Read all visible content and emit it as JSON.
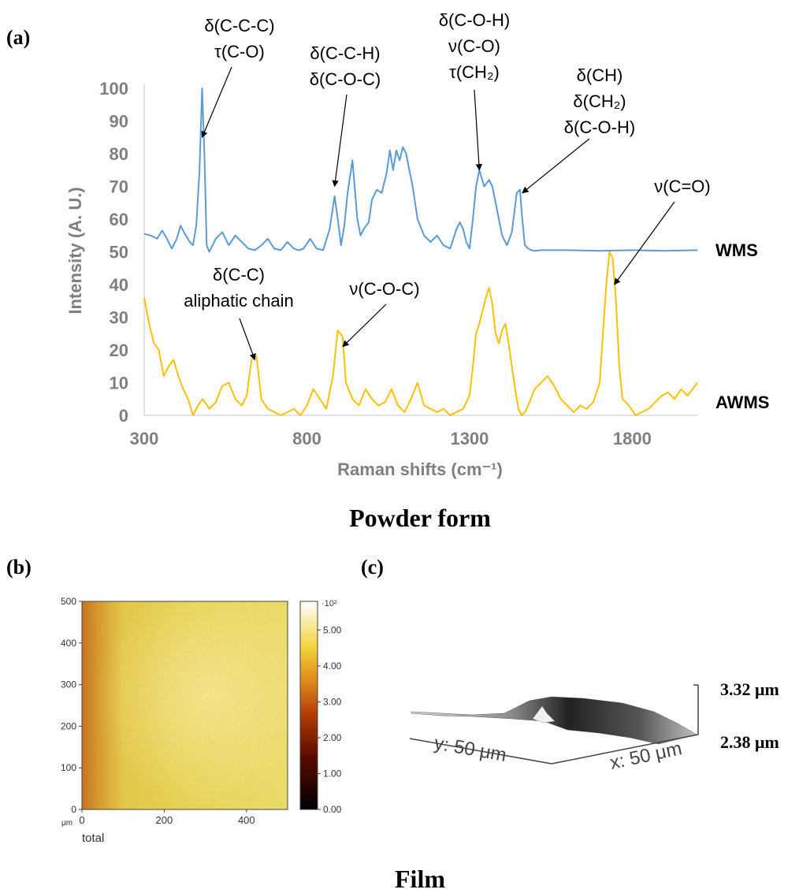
{
  "panel_labels": {
    "a": "(a)",
    "b": "(b)",
    "c": "(c)"
  },
  "captions": {
    "powder": "Powder form",
    "film": "Film"
  },
  "colors": {
    "wms": "#5b9bd5",
    "awms": "#ffc000",
    "axis_text": "#7f7f7f"
  },
  "chart_data": [
    {
      "type": "line",
      "title": "",
      "xlabel": "Raman shifts (cm⁻¹)",
      "ylabel": "Intensity (A. U.)",
      "xlim": [
        300,
        2000
      ],
      "ylim": [
        0,
        100
      ],
      "xticks": [
        300,
        800,
        1300,
        1800
      ],
      "yticks": [
        0,
        10,
        20,
        30,
        40,
        50,
        60,
        70,
        80,
        90,
        100
      ],
      "grid": false,
      "legend": "inline labels at right",
      "series": [
        {
          "name": "WMS",
          "x": [
            300,
            320,
            340,
            355,
            370,
            385,
            400,
            412,
            425,
            440,
            450,
            460,
            470,
            478,
            485,
            492,
            500,
            505,
            520,
            540,
            560,
            580,
            600,
            620,
            640,
            660,
            680,
            700,
            720,
            740,
            760,
            775,
            790,
            810,
            830,
            850,
            870,
            885,
            895,
            905,
            915,
            925,
            940,
            955,
            965,
            975,
            990,
            1000,
            1015,
            1030,
            1045,
            1055,
            1065,
            1075,
            1085,
            1095,
            1105,
            1115,
            1125,
            1140,
            1160,
            1180,
            1200,
            1220,
            1240,
            1260,
            1270,
            1280,
            1290,
            1300,
            1310,
            1320,
            1330,
            1345,
            1360,
            1370,
            1380,
            1390,
            1400,
            1415,
            1430,
            1445,
            1455,
            1462,
            1470,
            1480,
            1490,
            1500,
            1520,
            1600,
            1700,
            1800,
            1900,
            2000
          ],
          "y": [
            55.5,
            55,
            54,
            56.5,
            54,
            51,
            54,
            58,
            55.5,
            53,
            52,
            58,
            75,
            100,
            80,
            52,
            50,
            51,
            54,
            56,
            52,
            55,
            53,
            51,
            50.5,
            52,
            54,
            51,
            50.5,
            53,
            51,
            50.5,
            51,
            54,
            51,
            50.5,
            57,
            67,
            60,
            52,
            58,
            68,
            78,
            60,
            55,
            57,
            59,
            66,
            69,
            68,
            74,
            81,
            75,
            81,
            78,
            82,
            80,
            75,
            70,
            60,
            55,
            53,
            55,
            52,
            51,
            57,
            59,
            57,
            53,
            51,
            60,
            70,
            75,
            70,
            72,
            70,
            65,
            60,
            55,
            52,
            56,
            68,
            69,
            60,
            52,
            51,
            50.5,
            50.3,
            50.5,
            50.5,
            50.3,
            50.5,
            50.3,
            50.5
          ]
        },
        {
          "name": "AWMS",
          "x": [
            300,
            315,
            330,
            345,
            360,
            375,
            390,
            405,
            420,
            435,
            450,
            465,
            480,
            500,
            520,
            540,
            560,
            580,
            600,
            615,
            630,
            645,
            660,
            680,
            700,
            720,
            740,
            760,
            780,
            800,
            820,
            840,
            860,
            880,
            895,
            910,
            920,
            940,
            960,
            980,
            1000,
            1020,
            1040,
            1060,
            1080,
            1100,
            1120,
            1140,
            1160,
            1180,
            1200,
            1220,
            1240,
            1260,
            1280,
            1300,
            1310,
            1320,
            1330,
            1340,
            1350,
            1360,
            1370,
            1380,
            1390,
            1400,
            1410,
            1420,
            1430,
            1440,
            1450,
            1460,
            1470,
            1480,
            1500,
            1520,
            1540,
            1560,
            1580,
            1600,
            1620,
            1640,
            1660,
            1680,
            1700,
            1710,
            1720,
            1730,
            1740,
            1750,
            1760,
            1770,
            1790,
            1810,
            1830,
            1850,
            1870,
            1890,
            1910,
            1930,
            1950,
            1970,
            2000
          ],
          "y": [
            36,
            28,
            22,
            20,
            12,
            15,
            17,
            12,
            8,
            5,
            0,
            3,
            5,
            2,
            4,
            9,
            10,
            5,
            3,
            6,
            17,
            18,
            5,
            2,
            1,
            0,
            1,
            2,
            0,
            3,
            8,
            5,
            2,
            12,
            26,
            24,
            10,
            5,
            3,
            8,
            5,
            3,
            4,
            8,
            3,
            1,
            5,
            10,
            3,
            2,
            1,
            2,
            0,
            1,
            2,
            6,
            15,
            25,
            28,
            32,
            36,
            39,
            34,
            25,
            22,
            26,
            28,
            22,
            15,
            8,
            2,
            0,
            1,
            3,
            8,
            10,
            12,
            9,
            5,
            3,
            1,
            3,
            2,
            4,
            10,
            25,
            40,
            50,
            48,
            35,
            15,
            5,
            3,
            0,
            1,
            2,
            4,
            6,
            7,
            5,
            8,
            6,
            10
          ]
        }
      ],
      "series_labels": [
        "WMS",
        "AWMS"
      ],
      "annotations": [
        {
          "lines": [
            "δ(C-C-C)",
            "τ(C-O)"
          ],
          "target_x": 478,
          "target_y": 85
        },
        {
          "lines": [
            "δ(C-C-H)",
            "δ(C-O-C)"
          ],
          "target_x": 885,
          "target_y": 70
        },
        {
          "lines": [
            "δ(C-O-H)",
            "ν(C-O)",
            "τ(CH₂)"
          ],
          "target_x": 1330,
          "target_y": 75
        },
        {
          "lines": [
            "δ(CH)",
            "δ(CH₂)",
            "δ(C-O-H)"
          ],
          "target_x": 1462,
          "target_y": 68
        },
        {
          "lines": [
            "ν(C=O)"
          ],
          "target_x": 1745,
          "target_y": 40
        },
        {
          "lines": [
            "δ(C-C)",
            "aliphatic chain"
          ],
          "target_x": 640,
          "target_y": 17
        },
        {
          "lines": [
            "ν(C-O-C)"
          ],
          "target_x": 910,
          "target_y": 21
        }
      ]
    },
    {
      "type": "heatmap",
      "title": "",
      "xlabel": "",
      "ylabel": "",
      "x_unit": "μm",
      "xticks": [
        0,
        200,
        400
      ],
      "yticks": [
        0,
        100,
        200,
        300,
        400,
        500
      ],
      "xlim": [
        0,
        500
      ],
      "ylim": [
        0,
        500
      ],
      "bottom_label": "total",
      "colorbar": {
        "multiplier": "·10²",
        "ticks": [
          "0.00",
          "1.00",
          "2.00",
          "3.00",
          "4.00",
          "5.00"
        ],
        "range": [
          0,
          5.8
        ]
      },
      "description_values": "intensity map, mostly yellow ~4.5–5.0, darker orange band along left edge ~3.5"
    },
    {
      "type": "surface",
      "axis_labels": [
        "y: 50 μm",
        "x: 50 μm"
      ],
      "z_labels": [
        "3.32 μm",
        "2.38 μm"
      ],
      "zlim": [
        2.38,
        3.32
      ]
    }
  ]
}
